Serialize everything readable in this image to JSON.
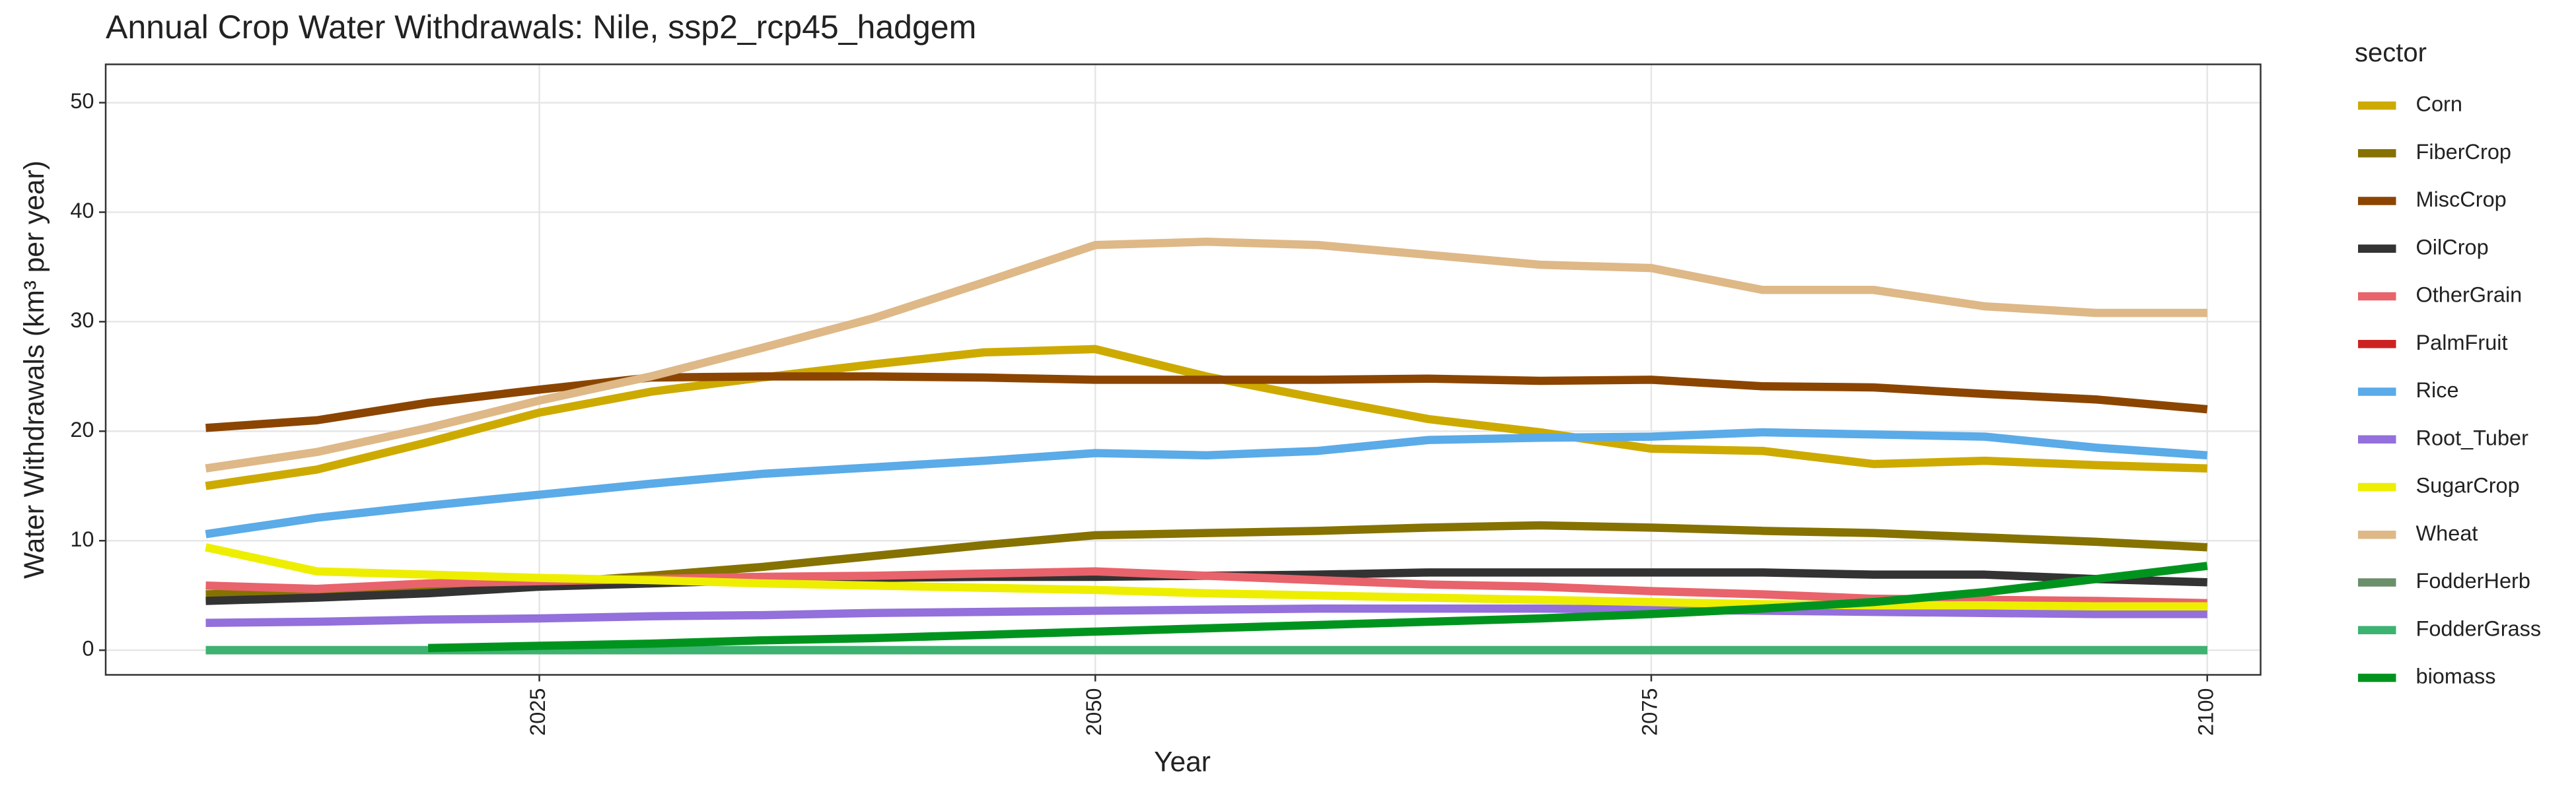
{
  "chart_data": {
    "type": "line",
    "title": "Annual Crop Water Withdrawals: Nile, ssp2_rcp45_hadgem",
    "x_label": "Year",
    "y_label": "Water Withdrawals (km³ per year)",
    "legend_title": "sector",
    "legend": "right",
    "grid": true,
    "x": [
      2010,
      2015,
      2020,
      2025,
      2030,
      2035,
      2040,
      2045,
      2050,
      2055,
      2060,
      2065,
      2070,
      2075,
      2080,
      2085,
      2090,
      2095,
      2100
    ],
    "xlim": [
      2005.5,
      2102.4
    ],
    "xticks": [
      2025,
      2050,
      2075,
      2100
    ],
    "ylim": [
      -2.25,
      53.5
    ],
    "yticks": [
      0,
      10,
      20,
      30,
      40,
      50
    ],
    "series": [
      {
        "name": "Corn",
        "color": "#cdaa00",
        "values": [
          15.0,
          16.5,
          19.0,
          21.7,
          23.6,
          24.9,
          26.1,
          27.2,
          27.5,
          25.0,
          23.0,
          21.1,
          19.9,
          18.4,
          18.2,
          17.0,
          17.3,
          16.9,
          16.6
        ]
      },
      {
        "name": "FiberCrop",
        "color": "#857200",
        "values": [
          5.1,
          5.3,
          5.7,
          6.1,
          6.8,
          7.6,
          8.6,
          9.6,
          10.5,
          10.7,
          10.9,
          11.2,
          11.4,
          11.2,
          10.9,
          10.7,
          10.3,
          9.9,
          9.4
        ]
      },
      {
        "name": "MiscCrop",
        "color": "#8b4500",
        "values": [
          20.3,
          21.0,
          22.6,
          23.8,
          24.9,
          25.0,
          25.0,
          24.9,
          24.7,
          24.7,
          24.7,
          24.8,
          24.6,
          24.7,
          24.1,
          24.0,
          23.4,
          22.9,
          22.0
        ]
      },
      {
        "name": "OilCrop",
        "color": "#333333",
        "values": [
          4.5,
          4.8,
          5.2,
          5.8,
          6.1,
          6.4,
          6.6,
          6.7,
          6.7,
          6.8,
          6.9,
          7.1,
          7.1,
          7.1,
          7.1,
          6.9,
          6.9,
          6.5,
          6.2
        ]
      },
      {
        "name": "OtherGrain",
        "color": "#e8636b",
        "values": [
          5.9,
          5.6,
          6.1,
          6.3,
          6.5,
          6.7,
          6.8,
          7.0,
          7.2,
          6.8,
          6.4,
          6.0,
          5.8,
          5.4,
          5.1,
          4.7,
          4.6,
          4.5,
          4.3
        ]
      },
      {
        "name": "PalmFruit",
        "color": "#cc2222",
        "values": [
          0,
          0,
          0,
          0,
          0,
          0,
          0,
          0,
          0,
          0,
          0,
          0,
          0,
          0,
          0,
          0,
          0,
          0,
          0
        ]
      },
      {
        "name": "Rice",
        "color": "#5aabe8",
        "values": [
          10.6,
          12.1,
          13.2,
          14.2,
          15.2,
          16.1,
          16.7,
          17.3,
          18.0,
          17.8,
          18.2,
          19.2,
          19.4,
          19.5,
          19.9,
          19.7,
          19.5,
          18.5,
          17.8
        ]
      },
      {
        "name": "Root_Tuber",
        "color": "#9370db",
        "values": [
          2.5,
          2.6,
          2.8,
          2.9,
          3.1,
          3.2,
          3.4,
          3.5,
          3.6,
          3.7,
          3.8,
          3.8,
          3.8,
          3.7,
          3.6,
          3.5,
          3.4,
          3.3,
          3.3
        ]
      },
      {
        "name": "SugarCrop",
        "color": "#eeee00",
        "values": [
          9.4,
          7.2,
          6.9,
          6.6,
          6.4,
          6.1,
          5.9,
          5.7,
          5.5,
          5.2,
          5.0,
          4.8,
          4.6,
          4.4,
          4.2,
          4.1,
          4.1,
          4.0,
          4.0
        ]
      },
      {
        "name": "Wheat",
        "color": "#deb887",
        "values": [
          16.6,
          18.1,
          20.3,
          22.8,
          25.0,
          27.6,
          30.3,
          33.6,
          37.0,
          37.3,
          37.0,
          36.1,
          35.2,
          34.9,
          32.9,
          32.9,
          31.4,
          30.8,
          30.8
        ]
      },
      {
        "name": "FodderHerb",
        "color": "#6b8e6b",
        "values": [
          0,
          0,
          0,
          0,
          0,
          0,
          0,
          0,
          0,
          0,
          0,
          0,
          0,
          0,
          0,
          0,
          0,
          0,
          0
        ]
      },
      {
        "name": "FodderGrass",
        "color": "#3cb371",
        "values": [
          0,
          0,
          0,
          0,
          0,
          0,
          0,
          0,
          0,
          0,
          0,
          0,
          0,
          0,
          0,
          0,
          0,
          0,
          0
        ]
      },
      {
        "name": "biomass",
        "color": "#00941e",
        "values": [
          null,
          null,
          0.2,
          0.4,
          0.6,
          0.9,
          1.1,
          1.4,
          1.7,
          2.0,
          2.3,
          2.6,
          2.9,
          3.3,
          3.8,
          4.4,
          5.3,
          6.5,
          7.7
        ]
      }
    ]
  }
}
